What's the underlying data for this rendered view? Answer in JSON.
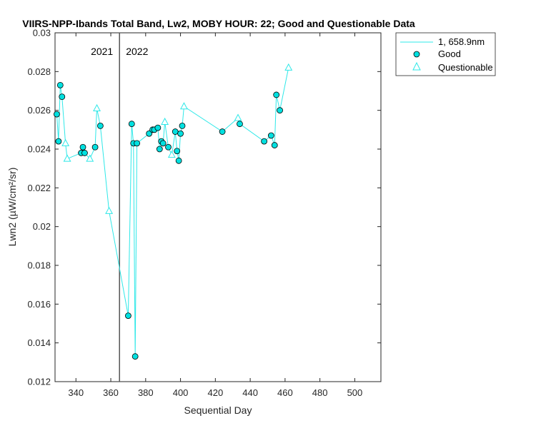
{
  "chart_data": {
    "type": "line",
    "title": "VIIRS-NPP-Ibands Total Band, Lw2, MOBY HOUR: 22;  Good and Questionable Data",
    "xlabel": "Sequential Day",
    "ylabel": "Lwn2 (µW/cm²/sr)",
    "xlim": [
      328,
      515
    ],
    "ylim": [
      0.012,
      0.03
    ],
    "xticks": [
      340,
      360,
      380,
      400,
      420,
      440,
      460,
      480,
      500
    ],
    "yticks": [
      0.012,
      0.014,
      0.016,
      0.018,
      0.02,
      0.022,
      0.024,
      0.026,
      0.028,
      0.03
    ],
    "xtick_labels": [
      "340",
      "360",
      "380",
      "400",
      "420",
      "440",
      "460",
      "480",
      "500"
    ],
    "ytick_labels": [
      "0.012",
      "0.014",
      "0.016",
      "0.018",
      "0.02",
      "0.022",
      "0.024",
      "0.026",
      "0.028",
      "0.03"
    ],
    "year_divider": {
      "x": 365,
      "left_label": "2021",
      "right_label": "2022"
    },
    "grid": false,
    "legend_position": "outside-top-right",
    "colors": {
      "line": "#2ee8e8",
      "good_fill": "#00e0e0",
      "good_edge": "#000000",
      "questionable": "#2ee8e8",
      "divider": "#555555"
    },
    "series": [
      {
        "name": "1, 658.9nm",
        "marker": "line",
        "x": [
          329,
          330,
          331,
          332,
          334,
          335,
          343,
          344,
          345,
          348,
          351,
          352,
          354,
          359,
          370,
          372,
          373,
          374,
          375,
          382,
          384,
          385,
          387,
          388,
          389,
          390,
          391,
          393,
          395,
          397,
          398,
          399,
          400,
          401,
          402,
          424,
          433,
          434,
          448,
          452,
          454,
          455,
          457,
          462
        ],
        "y": [
          0.0258,
          0.0244,
          0.0273,
          0.0267,
          0.0243,
          0.0235,
          0.0238,
          0.0241,
          0.0238,
          0.0235,
          0.0241,
          0.0261,
          0.0252,
          0.0208,
          0.0154,
          0.0253,
          0.0243,
          0.0133,
          0.0243,
          0.0248,
          0.025,
          0.025,
          0.0251,
          0.024,
          0.0244,
          0.0243,
          0.0254,
          0.0241,
          0.0237,
          0.0249,
          0.0239,
          0.0234,
          0.0248,
          0.0252,
          0.0262,
          0.0249,
          0.0256,
          0.0253,
          0.0244,
          0.0247,
          0.0242,
          0.0268,
          0.026,
          0.0282
        ]
      },
      {
        "name": "Good",
        "marker": "circle",
        "x": [
          329,
          330,
          331,
          332,
          343,
          344,
          345,
          351,
          354,
          370,
          372,
          373,
          374,
          375,
          382,
          384,
          385,
          387,
          388,
          389,
          390,
          393,
          397,
          398,
          399,
          400,
          401,
          424,
          434,
          448,
          452,
          454,
          455,
          457
        ],
        "y": [
          0.0258,
          0.0244,
          0.0273,
          0.0267,
          0.0238,
          0.0241,
          0.0238,
          0.0241,
          0.0252,
          0.0154,
          0.0253,
          0.0243,
          0.0133,
          0.0243,
          0.0248,
          0.025,
          0.025,
          0.0251,
          0.024,
          0.0244,
          0.0243,
          0.0241,
          0.0249,
          0.0239,
          0.0234,
          0.0248,
          0.0252,
          0.0249,
          0.0253,
          0.0244,
          0.0247,
          0.0242,
          0.0268,
          0.026
        ]
      },
      {
        "name": "Questionable",
        "marker": "triangle",
        "x": [
          334,
          335,
          348,
          352,
          359,
          391,
          395,
          402,
          433,
          462
        ],
        "y": [
          0.0243,
          0.0235,
          0.0235,
          0.0261,
          0.0208,
          0.0254,
          0.0237,
          0.0262,
          0.0256,
          0.0282
        ]
      }
    ]
  }
}
